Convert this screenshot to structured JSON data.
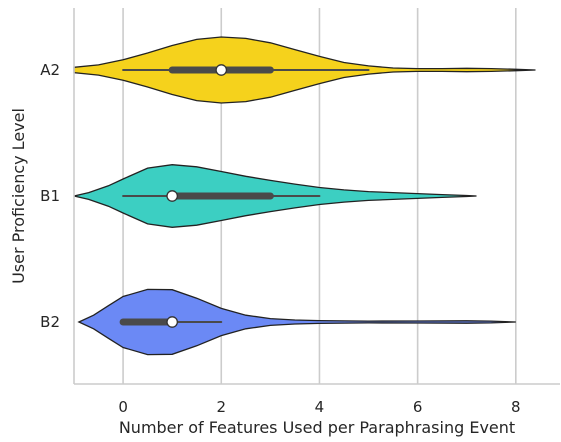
{
  "chart_data": {
    "type": "violin",
    "orientation": "horizontal",
    "xlabel": "Number of Features Used per Paraphrasing Event",
    "ylabel": "User Proficiency Level",
    "xlim": [
      -1,
      8.9
    ],
    "xticks": [
      0,
      2,
      4,
      6,
      8
    ],
    "grid": "vertical",
    "categories": [
      "A2",
      "B1",
      "B2"
    ],
    "series": [
      {
        "category": "A2",
        "color": "#f5d21c",
        "min": 0,
        "q1": 1,
        "median": 2,
        "q3": 3,
        "max": 5,
        "extent": [
          -1,
          8.4
        ],
        "density": [
          [
            -1,
            0.08
          ],
          [
            -0.5,
            0.15
          ],
          [
            0,
            0.3
          ],
          [
            0.5,
            0.5
          ],
          [
            1,
            0.72
          ],
          [
            1.5,
            0.9
          ],
          [
            2,
            0.97
          ],
          [
            2.5,
            0.93
          ],
          [
            3,
            0.8
          ],
          [
            3.5,
            0.6
          ],
          [
            4,
            0.4
          ],
          [
            4.5,
            0.22
          ],
          [
            5,
            0.12
          ],
          [
            5.5,
            0.06
          ],
          [
            6,
            0.04
          ],
          [
            6.5,
            0.04
          ],
          [
            7,
            0.05
          ],
          [
            7.5,
            0.04
          ],
          [
            8,
            0.02
          ],
          [
            8.4,
            0.0
          ]
        ]
      },
      {
        "category": "B1",
        "color": "#3ccfc2",
        "min": 0,
        "q1": 1,
        "median": 1,
        "q3": 3,
        "max": 4,
        "extent": [
          -1,
          7.2
        ],
        "density": [
          [
            -1,
            0.0
          ],
          [
            -0.7,
            0.1
          ],
          [
            -0.3,
            0.3
          ],
          [
            0,
            0.5
          ],
          [
            0.5,
            0.82
          ],
          [
            1,
            0.92
          ],
          [
            1.5,
            0.86
          ],
          [
            2,
            0.72
          ],
          [
            2.5,
            0.58
          ],
          [
            3,
            0.46
          ],
          [
            3.5,
            0.35
          ],
          [
            4,
            0.25
          ],
          [
            4.5,
            0.18
          ],
          [
            5,
            0.13
          ],
          [
            5.5,
            0.1
          ],
          [
            6,
            0.07
          ],
          [
            6.5,
            0.04
          ],
          [
            7,
            0.015
          ],
          [
            7.2,
            0.0
          ]
        ]
      },
      {
        "category": "B2",
        "color": "#6b89f5",
        "min": 0,
        "q1": 0,
        "median": 1,
        "q3": 1,
        "max": 2,
        "extent": [
          -0.9,
          8.0
        ],
        "density": [
          [
            -0.9,
            0.0
          ],
          [
            -0.6,
            0.2
          ],
          [
            -0.3,
            0.48
          ],
          [
            0,
            0.75
          ],
          [
            0.5,
            0.96
          ],
          [
            1,
            0.95
          ],
          [
            1.5,
            0.7
          ],
          [
            2,
            0.4
          ],
          [
            2.5,
            0.2
          ],
          [
            3,
            0.1
          ],
          [
            3.5,
            0.06
          ],
          [
            4,
            0.04
          ],
          [
            5,
            0.025
          ],
          [
            6,
            0.03
          ],
          [
            7,
            0.035
          ],
          [
            7.5,
            0.025
          ],
          [
            8,
            0.0
          ]
        ]
      }
    ]
  }
}
